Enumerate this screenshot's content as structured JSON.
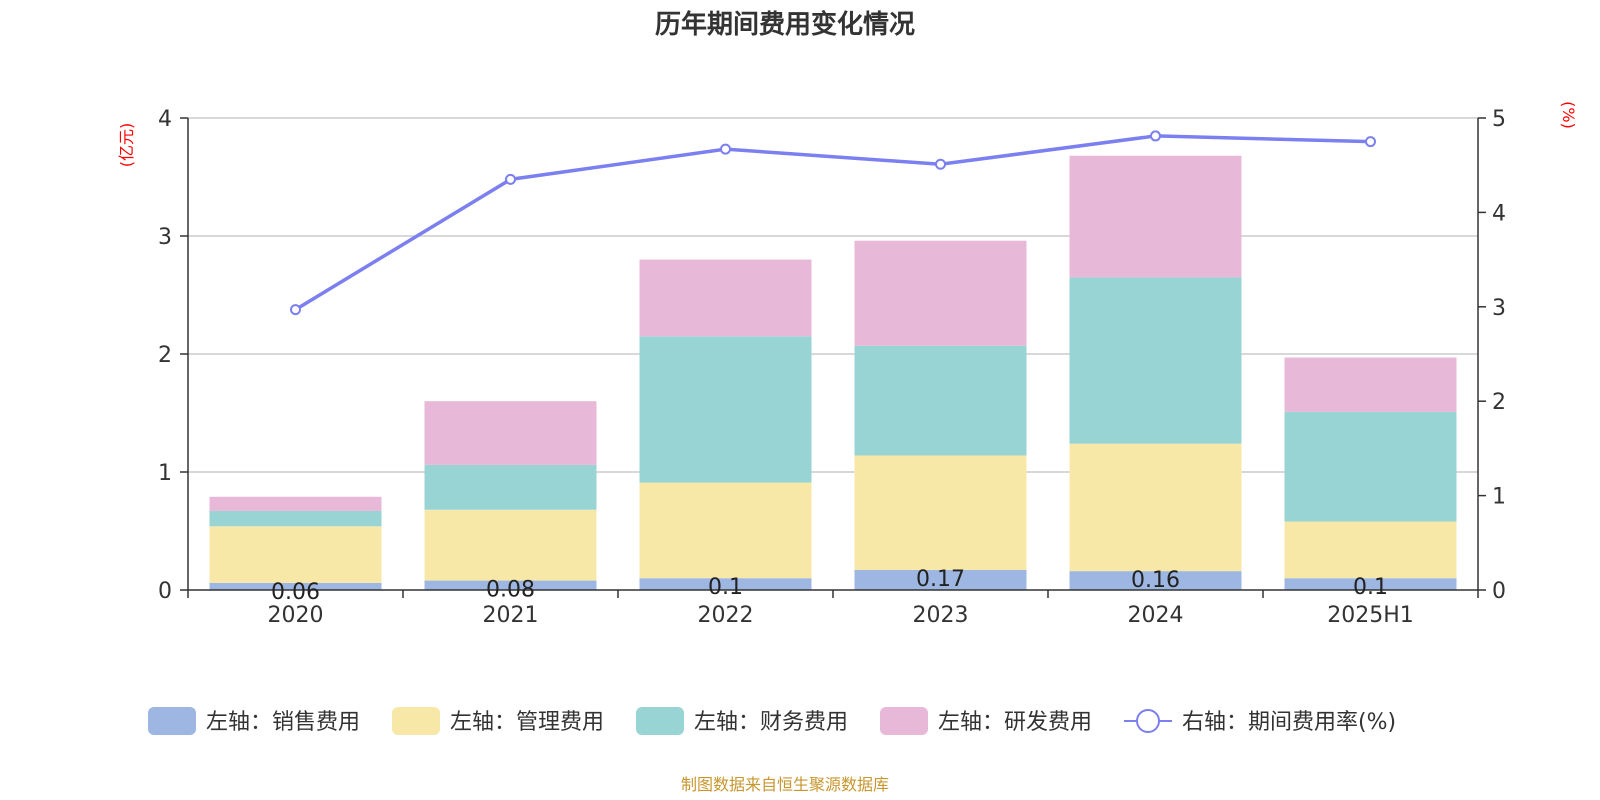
{
  "chart_data": {
    "type": "bar",
    "title": "历年期间费用变化情况",
    "left_axis_unit": "(亿元)",
    "right_axis_unit": "(%)",
    "categories": [
      "2020",
      "2021",
      "2022",
      "2023",
      "2024",
      "2025H1"
    ],
    "left_ylim": [
      0,
      4
    ],
    "left_ticks": [
      "0",
      "1",
      "2",
      "3",
      "4"
    ],
    "right_ylim": [
      0,
      5
    ],
    "right_ticks": [
      "0",
      "1",
      "2",
      "3",
      "4",
      "5"
    ],
    "grid": true,
    "legend_position": "bottom",
    "series": [
      {
        "name": "左轴：销售费用",
        "axis": "left",
        "type": "bar",
        "color": "#9db7e2",
        "values": [
          0.06,
          0.08,
          0.1,
          0.17,
          0.16,
          0.1
        ],
        "labels": [
          "0.06",
          "0.08",
          "0.1",
          "0.17",
          "0.16",
          "0.1"
        ]
      },
      {
        "name": "左轴：管理费用",
        "axis": "left",
        "type": "bar",
        "color": "#f8e8a8",
        "values": [
          0.48,
          0.6,
          0.81,
          0.97,
          1.08,
          0.48
        ]
      },
      {
        "name": "左轴：财务费用",
        "axis": "left",
        "type": "bar",
        "color": "#98d4d4",
        "values": [
          0.13,
          0.38,
          1.24,
          0.93,
          1.41,
          0.93
        ]
      },
      {
        "name": "左轴：研发费用",
        "axis": "left",
        "type": "bar",
        "color": "#e8b8d8",
        "values": [
          0.12,
          0.54,
          0.65,
          0.89,
          1.03,
          0.46
        ]
      },
      {
        "name": "右轴：期间费用率(%)",
        "axis": "right",
        "type": "line",
        "color": "#7b7ff0",
        "values": [
          2.97,
          4.35,
          4.67,
          4.51,
          4.81,
          4.75
        ]
      }
    ],
    "source": "制图数据来自恒生聚源数据库"
  }
}
